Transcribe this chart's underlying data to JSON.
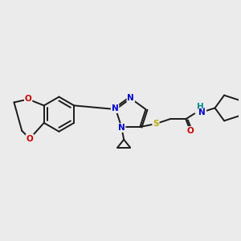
{
  "background_color": "#ebebeb",
  "figsize": [
    3.0,
    3.0
  ],
  "dpi": 100,
  "atom_colors": {
    "N": "#0000cc",
    "O": "#cc0000",
    "S": "#bbaa00",
    "C": "#1a1a1a",
    "H": "#008888"
  },
  "bond_color": "#1a1a1a",
  "bond_width": 1.4,
  "font_size_atom": 7.5
}
